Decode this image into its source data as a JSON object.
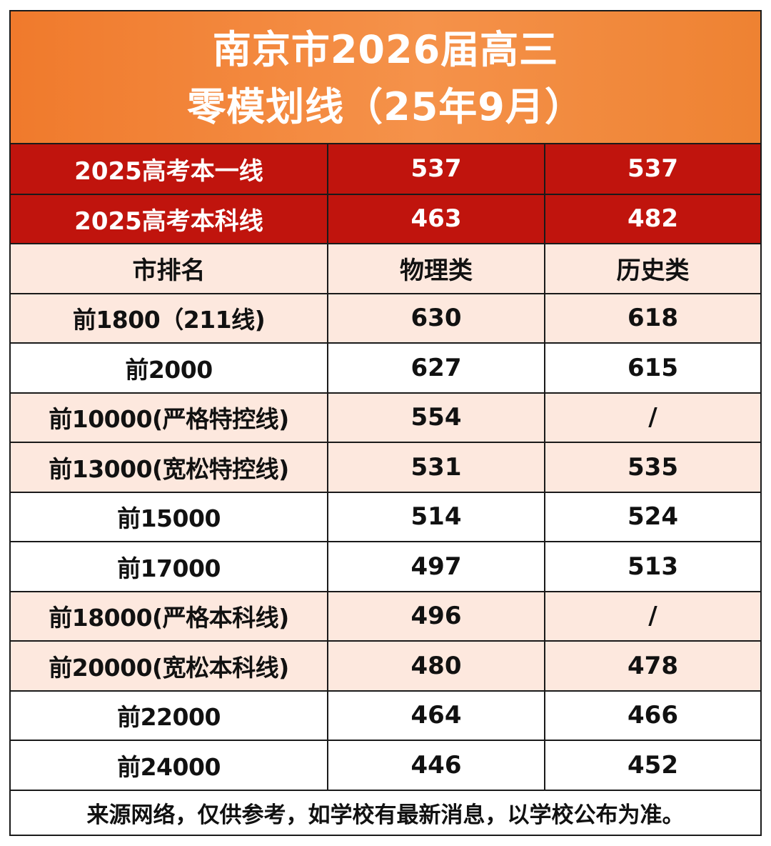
{
  "title": {
    "line1": "南京市2026届高三",
    "line2": "零模划线（25年9月）"
  },
  "reference_lines": [
    {
      "label": "2025高考本一线",
      "physics": "537",
      "history": "537"
    },
    {
      "label": "2025高考本科线",
      "physics": "463",
      "history": "482"
    }
  ],
  "header": {
    "rank": "市排名",
    "physics": "物理类",
    "history": "历史类"
  },
  "rows": [
    {
      "rank": "前1800（211线)",
      "physics": "630",
      "history": "618",
      "shade": "peach"
    },
    {
      "rank": "前2000",
      "physics": "627",
      "history": "615",
      "shade": "white"
    },
    {
      "rank": "前10000(严格特控线)",
      "physics": "554",
      "history": "/",
      "shade": "peach"
    },
    {
      "rank": "前13000(宽松特控线)",
      "physics": "531",
      "history": "535",
      "shade": "peach"
    },
    {
      "rank": "前15000",
      "physics": "514",
      "history": "524",
      "shade": "white"
    },
    {
      "rank": "前17000",
      "physics": "497",
      "history": "513",
      "shade": "white"
    },
    {
      "rank": "前18000(严格本科线)",
      "physics": "496",
      "history": "/",
      "shade": "peach"
    },
    {
      "rank": "前20000(宽松本科线)",
      "physics": "480",
      "history": "478",
      "shade": "peach"
    },
    {
      "rank": "前22000",
      "physics": "464",
      "history": "466",
      "shade": "white"
    },
    {
      "rank": "前24000",
      "physics": "446",
      "history": "452",
      "shade": "white"
    }
  ],
  "footer": "来源网络，仅供参考，如学校有最新消息，以学校公布为准。",
  "colors": {
    "title_bg": "#f07a2c",
    "reference_bg": "#c0140d",
    "shade_bg": "#fde8de"
  }
}
